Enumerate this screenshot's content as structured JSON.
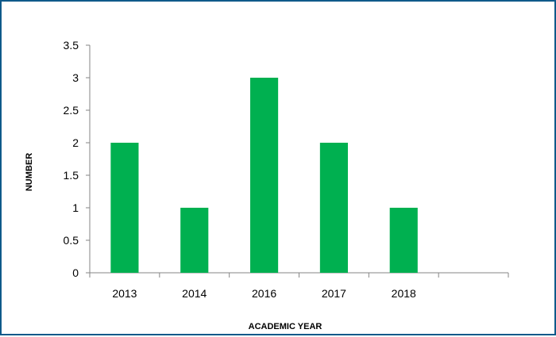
{
  "chart_data": {
    "type": "bar",
    "categories": [
      "2013",
      "2014",
      "2016",
      "2017",
      "2018",
      ""
    ],
    "values": [
      2,
      1,
      3,
      2,
      1,
      null
    ],
    "title": "",
    "xlabel": "ACADEMIC YEAR",
    "ylabel": "NUMBER",
    "ylim": [
      0,
      3.5
    ],
    "yticks": [
      "0",
      "0.5",
      "1",
      "1.5",
      "2",
      "2.5",
      "3",
      "3.5"
    ],
    "grid": false,
    "legend": "none",
    "bar_color": "#00b050"
  }
}
